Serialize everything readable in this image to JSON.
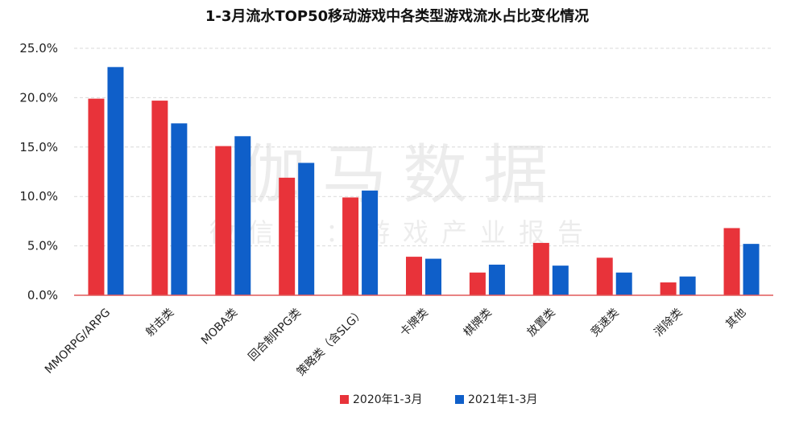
{
  "chart_data": {
    "type": "bar",
    "title": "1-3月流水TOP50移动游戏中各类型游戏流水占比变化情况",
    "categories": [
      "MMORPG/ARPG",
      "射击类",
      "MOBA类",
      "回合制RPG类",
      "策略类（含SLG）",
      "卡牌类",
      "棋牌类",
      "放置类",
      "竞速类",
      "消除类",
      "其他"
    ],
    "series": [
      {
        "name": "2020年1-3月",
        "color": "#e8333a",
        "values": [
          19.9,
          19.7,
          15.1,
          11.9,
          9.9,
          3.9,
          2.3,
          5.3,
          3.8,
          1.3,
          6.8
        ]
      },
      {
        "name": "2021年1-3月",
        "color": "#0f5fc9",
        "values": [
          23.1,
          17.4,
          16.1,
          13.4,
          10.6,
          3.7,
          3.1,
          3.0,
          2.3,
          1.9,
          5.2
        ]
      }
    ],
    "ylim": [
      0,
      25
    ],
    "yticks": [
      "0.0%",
      "5.0%",
      "10.0%",
      "15.0%",
      "20.0%",
      "25.0%"
    ],
    "ytick_values": [
      0,
      5,
      10,
      15,
      20,
      25
    ],
    "grid": true,
    "legend_position": "bottom-center"
  },
  "watermark": {
    "line1": "伽马数据",
    "line2": "微信号：游戏产业报告"
  }
}
